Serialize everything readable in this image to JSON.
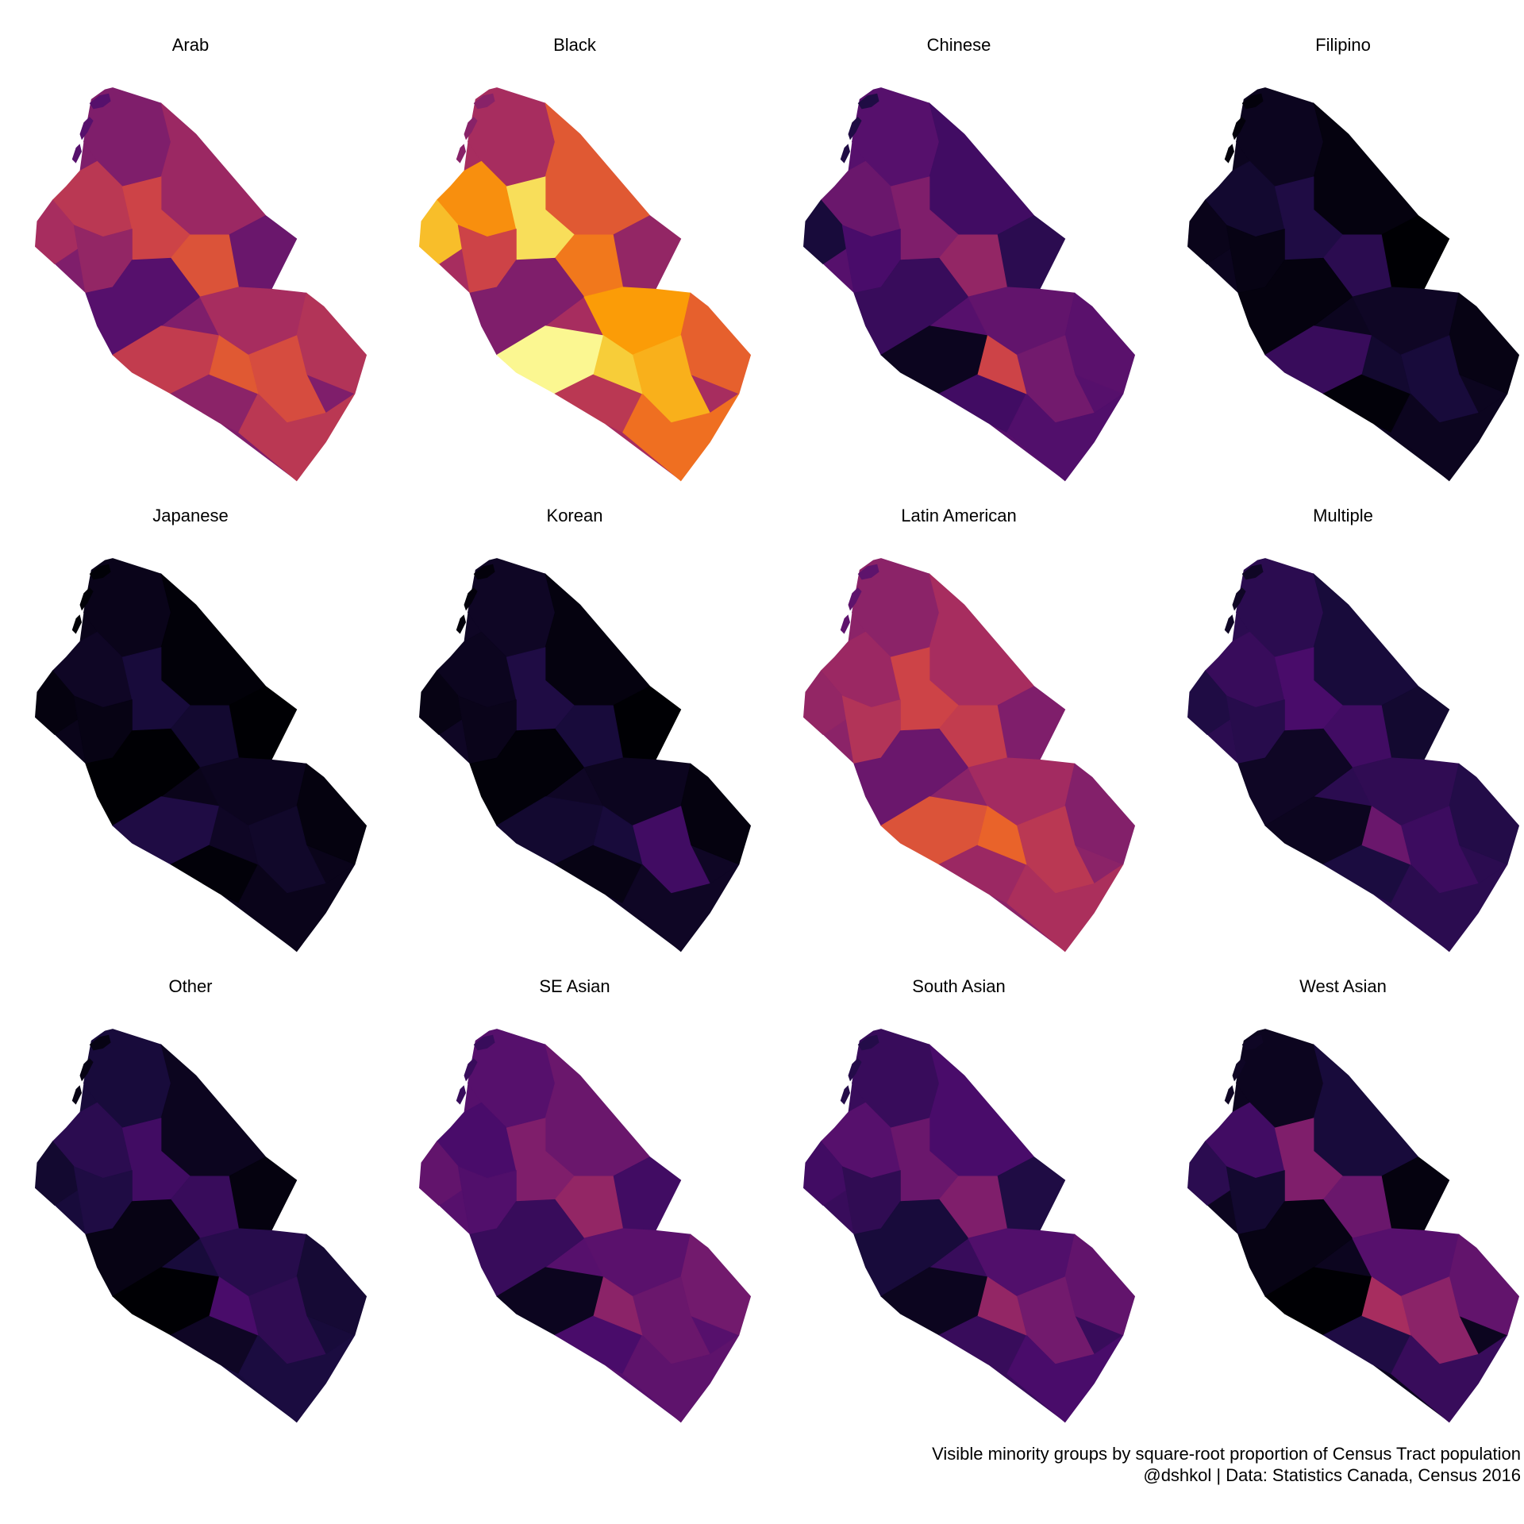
{
  "caption": {
    "line1": "Visible minority groups by square-root proportion of Census Tract population",
    "line2": "@dshkol | Data: Statistics Canada, Census 2016"
  },
  "colors": {
    "palette": "inferno",
    "stops": [
      "#000004",
      "#1b0c41",
      "#4a0c6b",
      "#781c6d",
      "#a52c60",
      "#cf4446",
      "#ed6925",
      "#fb9b06",
      "#f7d13d",
      "#fcffa4"
    ]
  },
  "panels": [
    {
      "title": "Arab",
      "levels": [
        0.35,
        0.42,
        0.5,
        0.3,
        0.55,
        0.45,
        0.4,
        0.6,
        0.25,
        0.45,
        0.52,
        0.48,
        0.58,
        0.38,
        0.5,
        0.62
      ]
    },
    {
      "title": "Black",
      "levels": [
        0.45,
        0.62,
        0.75,
        0.4,
        0.92,
        0.85,
        0.55,
        0.7,
        0.35,
        0.78,
        0.98,
        0.64,
        0.82,
        0.5,
        0.68,
        0.88
      ]
    },
    {
      "title": "Chinese",
      "levels": [
        0.25,
        0.2,
        0.3,
        0.15,
        0.35,
        0.1,
        0.22,
        0.4,
        0.18,
        0.28,
        0.05,
        0.26,
        0.32,
        0.2,
        0.24,
        0.55
      ]
    },
    {
      "title": "Filipino",
      "levels": [
        0.05,
        0.02,
        0.08,
        0.0,
        0.12,
        0.04,
        0.03,
        0.15,
        0.02,
        0.06,
        0.18,
        0.03,
        0.1,
        0.01,
        0.05,
        0.08
      ]
    },
    {
      "title": "Japanese",
      "levels": [
        0.04,
        0.01,
        0.06,
        0.0,
        0.1,
        0.02,
        0.03,
        0.08,
        0.0,
        0.05,
        0.12,
        0.02,
        0.07,
        0.01,
        0.04,
        0.06
      ]
    },
    {
      "title": "Korean",
      "levels": [
        0.06,
        0.02,
        0.05,
        0.0,
        0.12,
        0.03,
        0.04,
        0.1,
        0.01,
        0.05,
        0.08,
        0.02,
        0.2,
        0.03,
        0.06,
        0.1
      ]
    },
    {
      "title": "Latin American",
      "levels": [
        0.38,
        0.45,
        0.42,
        0.35,
        0.55,
        0.4,
        0.48,
        0.52,
        0.3,
        0.44,
        0.6,
        0.36,
        0.5,
        0.42,
        0.46,
        0.65
      ]
    },
    {
      "title": "Multiple",
      "levels": [
        0.15,
        0.1,
        0.18,
        0.08,
        0.22,
        0.12,
        0.14,
        0.2,
        0.06,
        0.16,
        0.05,
        0.13,
        0.19,
        0.11,
        0.15,
        0.3
      ]
    },
    {
      "title": "Other",
      "levels": [
        0.1,
        0.05,
        0.15,
        0.02,
        0.2,
        0.08,
        0.12,
        0.18,
        0.03,
        0.14,
        0.0,
        0.09,
        0.16,
        0.06,
        0.11,
        0.22
      ]
    },
    {
      "title": "SE Asian",
      "levels": [
        0.25,
        0.3,
        0.22,
        0.2,
        0.35,
        0.28,
        0.24,
        0.4,
        0.18,
        0.26,
        0.05,
        0.32,
        0.3,
        0.22,
        0.27,
        0.38
      ]
    },
    {
      "title": "South Asian",
      "levels": [
        0.18,
        0.22,
        0.25,
        0.12,
        0.3,
        0.2,
        0.16,
        0.35,
        0.1,
        0.24,
        0.05,
        0.28,
        0.32,
        0.18,
        0.22,
        0.4
      ]
    },
    {
      "title": "West Asian",
      "levels": [
        0.05,
        0.1,
        0.2,
        0.02,
        0.35,
        0.15,
        0.08,
        0.3,
        0.03,
        0.25,
        0.0,
        0.28,
        0.38,
        0.12,
        0.18,
        0.45
      ]
    }
  ]
}
